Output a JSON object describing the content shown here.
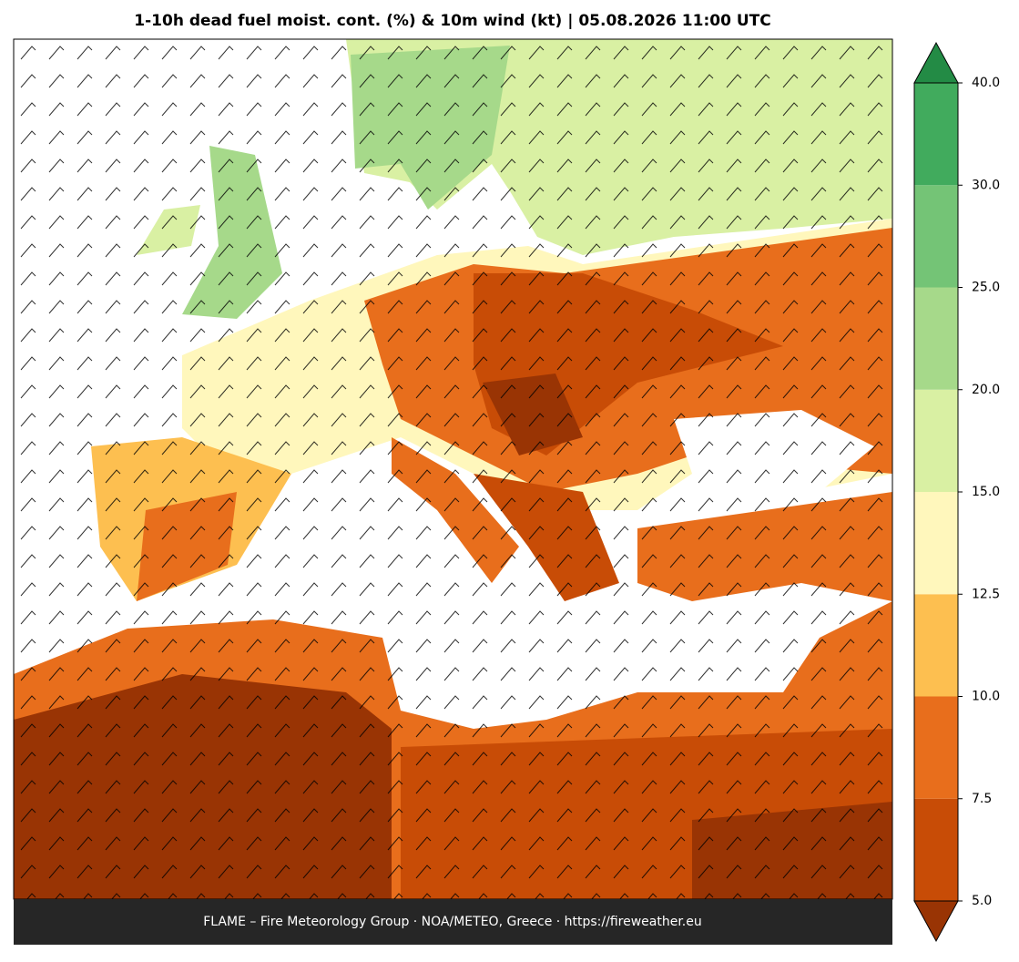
{
  "title": "1-10h dead fuel moist. cont. (%) & 10m wind (kt)  |  05.08.2026 11:00 UTC",
  "footer": "FLAME – Fire Meteorology Group · NOA/METEO, Greece · https://fireweather.eu",
  "colorbar": {
    "ticks": [
      {
        "value": 5,
        "label": "5.0"
      },
      {
        "value": 7.5,
        "label": "7.5"
      },
      {
        "value": 10,
        "label": "10.0"
      },
      {
        "value": 12.5,
        "label": "12.5"
      },
      {
        "value": 15,
        "label": "15.0"
      },
      {
        "value": 20,
        "label": "20.0"
      },
      {
        "value": 25,
        "label": "25.0"
      },
      {
        "value": 30,
        "label": "30.0"
      },
      {
        "value": 40,
        "label": "40.0"
      }
    ],
    "colors": [
      "#c84c06",
      "#e86e1c",
      "#fdbf50",
      "#fff7bc",
      "#d9f0a3",
      "#a6d98a",
      "#74c476",
      "#41ab5d"
    ],
    "under_color": "#993404",
    "over_color": "#238b45"
  }
}
